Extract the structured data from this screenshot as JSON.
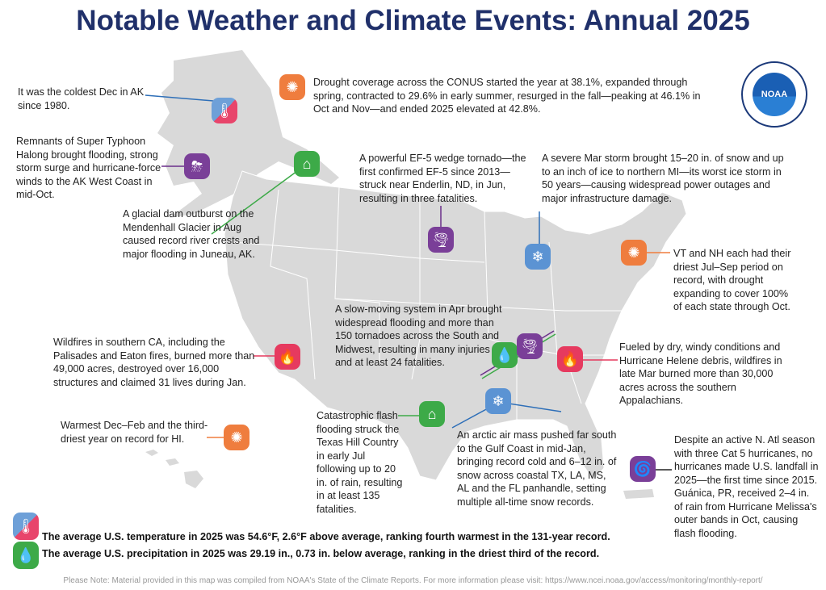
{
  "title": "Notable Weather and Climate Events: Annual 2025",
  "logo": {
    "text": "NOAA",
    "ring_text": "NATIONAL OCEANIC AND ATMOSPHERIC ADMINISTRATION · U.S. DEPARTMENT OF COMMERCE"
  },
  "events": [
    {
      "icon": "thermometer-icon",
      "text": "It was the coldest Dec in AK since 1980."
    },
    {
      "icon": "storm-icon",
      "text": "Remnants of Super Typhoon Halong brought flooding, strong storm surge and hurricane-force winds to the AK West Coast in mid-Oct."
    },
    {
      "icon": "flood-house-icon",
      "text": "A glacial dam outburst on the Mendenhall Glacier in Aug caused record river crests and major flooding in Juneau, AK."
    },
    {
      "icon": "drought-icon",
      "text": "Drought coverage across the CONUS started the year at 38.1%, expanded through spring, contracted to 29.6% in early summer, resurged in the fall—peaking at 46.1% in Oct and Nov—and ended 2025 elevated at 42.8%."
    },
    {
      "icon": "tornado-icon",
      "text": "A powerful EF-5 wedge tornado—the first confirmed EF-5 since 2013—struck near Enderlin, ND, in Jun, resulting in three fatalities."
    },
    {
      "icon": "snowflake-icon",
      "text": "A severe Mar storm brought 15–20 in. of snow and up to an inch of ice to northern MI—its worst ice storm in 50 years—causing widespread power outages and major infrastructure damage."
    },
    {
      "icon": "drought-icon",
      "text": "VT and NH each had their driest Jul–Sep period on record, with drought expanding to cover 100% of each state through Oct."
    },
    {
      "icon": "tornado-flood-icon",
      "text": "A slow-moving system in Apr brought widespread flooding and more than 150 tornadoes across the South and Midwest, resulting in many injuries and at least 24 fatalities."
    },
    {
      "icon": "wildfire-icon",
      "text": "Wildfires in southern CA, including the Palisades and Eaton fires, burned more than 49,000 acres, destroyed over 16,000 structures and claimed 31 lives during Jan."
    },
    {
      "icon": "wildfire-icon",
      "text": "Fueled by dry, windy conditions and Hurricane Helene debris, wildfires in late Mar burned more than 30,000 acres across the southern Appalachians."
    },
    {
      "icon": "drought-icon",
      "text": "Warmest Dec–Feb and the third-driest year on record for HI."
    },
    {
      "icon": "flood-house-icon",
      "text": "Catastrophic flash flooding struck the Texas Hill Country in early Jul following up to 20 in. of rain, resulting in at least 135 fatalities."
    },
    {
      "icon": "snowflake-icon",
      "text": "An arctic air mass pushed far south to the Gulf Coast in mid-Jan, bringing record cold and 6–12 in. of snow across coastal TX, LA, MS, AL and the FL panhandle, setting multiple all-time snow records."
    },
    {
      "icon": "hurricane-icon",
      "text": "Despite an active N. Atl season with three Cat 5 hurricanes, no hurricanes made U.S. landfall in 2025—the first time since 2015. Guánica, PR, received 2–4 in. of rain from Hurricane Melissa's outer bands in Oct, causing flash flooding."
    }
  ],
  "summary": {
    "temperature": "The average U.S. temperature in 2025 was 54.6°F, 2.6°F above average, ranking fourth warmest in the 131-year record.",
    "precipitation": "The average U.S. precipitation in 2025 was 29.19 in., 0.73 in. below average, ranking in the driest third of the record."
  },
  "note": "Please Note: Material provided in this map was compiled from NOAA's State of the Climate Reports. For more information please visit: https://www.ncei.noaa.gov/access/monitoring/monthly-report/"
}
